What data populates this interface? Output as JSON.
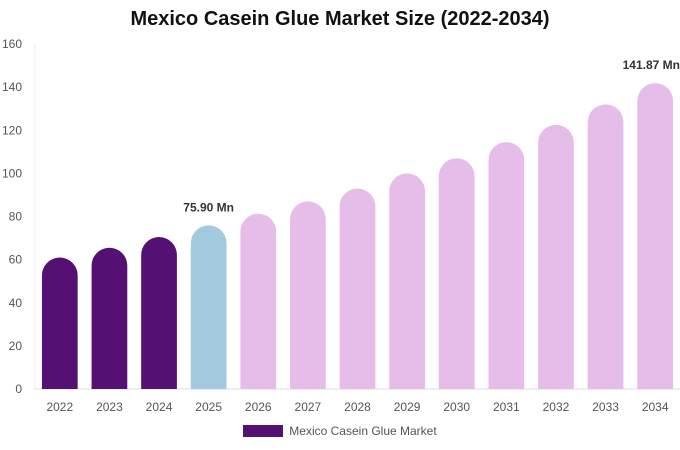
{
  "chart_data": {
    "type": "bar",
    "title": "Mexico Casein Glue Market Size (2022-2034)",
    "xlabel": "",
    "ylabel": "",
    "categories": [
      "2022",
      "2023",
      "2024",
      "2025",
      "2026",
      "2027",
      "2028",
      "2029",
      "2030",
      "2031",
      "2032",
      "2033",
      "2034"
    ],
    "series": [
      {
        "name": "Mexico Casein Glue Market",
        "values": [
          61.0,
          65.5,
          70.5,
          75.9,
          81.3,
          87.0,
          93.0,
          100.0,
          107.0,
          114.5,
          122.5,
          132.0,
          141.87
        ]
      }
    ],
    "ylim": [
      0,
      160
    ],
    "yticks": [
      0,
      20,
      40,
      60,
      80,
      100,
      120,
      140,
      160
    ],
    "annotations": [
      {
        "category": "2025",
        "text": "75.90 Mn"
      },
      {
        "category": "2034",
        "text": "141.87 Mn"
      }
    ],
    "colors": {
      "historical": "#541173",
      "current": "#a3c9de",
      "forecast": "#e6bde8"
    },
    "bar_color_groups": [
      "historical",
      "historical",
      "historical",
      "current",
      "forecast",
      "forecast",
      "forecast",
      "forecast",
      "forecast",
      "forecast",
      "forecast",
      "forecast",
      "forecast"
    ],
    "legend": {
      "position": "bottom",
      "label": "Mexico Casein Glue Market",
      "color": "#541173"
    },
    "grid": false
  }
}
